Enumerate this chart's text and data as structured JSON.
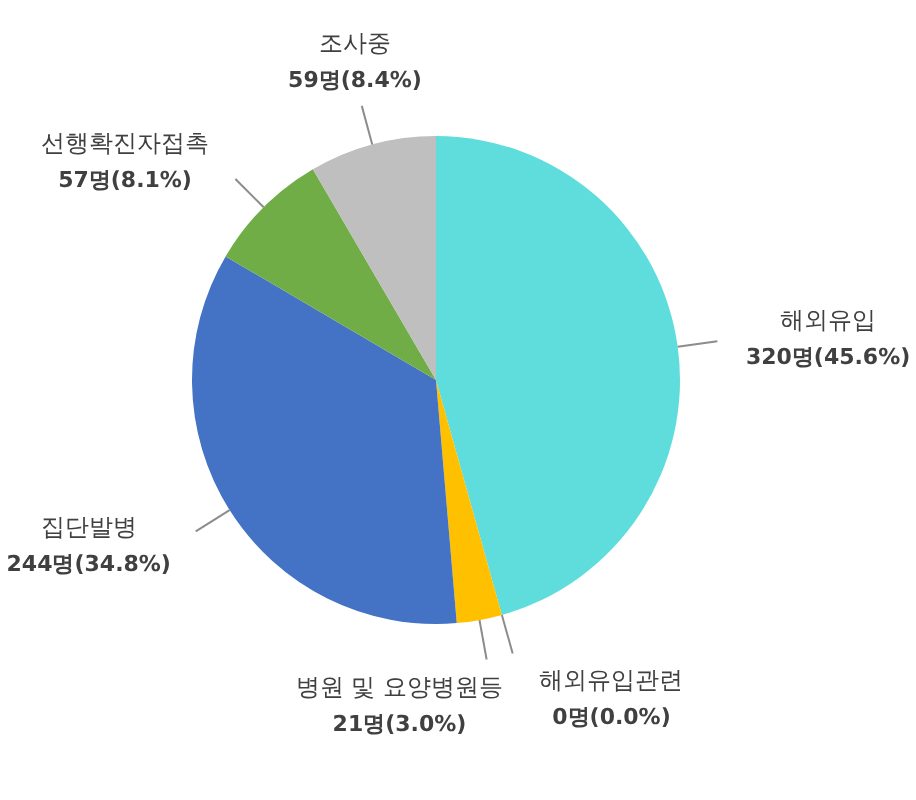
{
  "chart_data": {
    "type": "pie",
    "categories": [
      "해외유입",
      "해외유입관련",
      "병원 및 요양병원등",
      "집단발병",
      "선행확진자접촉",
      "조사중"
    ],
    "values": [
      320,
      0,
      21,
      244,
      57,
      59
    ],
    "colors": [
      "#5fdcdc",
      "#ed7d31",
      "#ffc000",
      "#4472c4",
      "#70ad47",
      "#bfbfbf"
    ],
    "value_labels": [
      "320명(45.6%)",
      "0명(0.0%)",
      "21명(3.0%)",
      "244명(34.8%)",
      "57명(8.1%)",
      "59명(8.4%)"
    ]
  }
}
